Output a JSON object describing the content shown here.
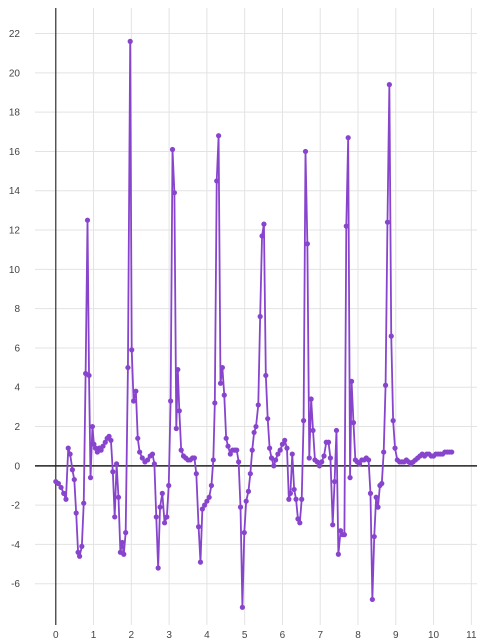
{
  "chart_data": {
    "type": "line",
    "title": "",
    "xlabel": "",
    "ylabel": "",
    "xlim": [
      -0.55,
      11.15
    ],
    "ylim": [
      -8.1,
      23.3
    ],
    "x_ticks": [
      0,
      1,
      2,
      3,
      4,
      5,
      6,
      7,
      8,
      9,
      10,
      11
    ],
    "y_ticks": [
      -6,
      -4,
      -2,
      0,
      2,
      4,
      6,
      8,
      10,
      12,
      14,
      16,
      18,
      20,
      22
    ],
    "grid": true,
    "legend": "none",
    "series": [
      {
        "name": "",
        "color": "#8844cc",
        "marker": "circle",
        "points": [
          [
            0.0,
            -0.8
          ],
          [
            0.07,
            -0.9
          ],
          [
            0.14,
            -1.1
          ],
          [
            0.21,
            -1.4
          ],
          [
            0.27,
            -1.7
          ],
          [
            0.33,
            0.9
          ],
          [
            0.38,
            0.6
          ],
          [
            0.44,
            -0.2
          ],
          [
            0.49,
            -0.7
          ],
          [
            0.54,
            -2.4
          ],
          [
            0.59,
            -4.4
          ],
          [
            0.63,
            -4.6
          ],
          [
            0.69,
            -4.1
          ],
          [
            0.74,
            -1.9
          ],
          [
            0.79,
            4.7
          ],
          [
            0.84,
            12.5
          ],
          [
            0.88,
            4.6
          ],
          [
            0.92,
            -0.6
          ],
          [
            0.97,
            2.0
          ],
          [
            1.01,
            1.1
          ],
          [
            1.05,
            0.9
          ],
          [
            1.1,
            0.7
          ],
          [
            1.15,
            0.9
          ],
          [
            1.2,
            0.8
          ],
          [
            1.25,
            1.0
          ],
          [
            1.31,
            1.2
          ],
          [
            1.36,
            1.4
          ],
          [
            1.41,
            1.5
          ],
          [
            1.46,
            1.3
          ],
          [
            1.51,
            -0.3
          ],
          [
            1.56,
            -2.6
          ],
          [
            1.61,
            0.1
          ],
          [
            1.66,
            -1.6
          ],
          [
            1.71,
            -4.4
          ],
          [
            1.76,
            -3.9
          ],
          [
            1.8,
            -4.5
          ],
          [
            1.85,
            -3.4
          ],
          [
            1.91,
            5.0
          ],
          [
            1.97,
            21.6
          ],
          [
            2.01,
            5.9
          ],
          [
            2.06,
            3.3
          ],
          [
            2.12,
            3.8
          ],
          [
            2.17,
            1.4
          ],
          [
            2.22,
            0.7
          ],
          [
            2.29,
            0.4
          ],
          [
            2.36,
            0.2
          ],
          [
            2.43,
            0.3
          ],
          [
            2.5,
            0.5
          ],
          [
            2.56,
            0.6
          ],
          [
            2.61,
            0.1
          ],
          [
            2.66,
            -2.6
          ],
          [
            2.71,
            -5.2
          ],
          [
            2.76,
            -2.1
          ],
          [
            2.82,
            -1.4
          ],
          [
            2.88,
            -2.9
          ],
          [
            2.94,
            -2.6
          ],
          [
            2.99,
            -1.0
          ],
          [
            3.04,
            3.3
          ],
          [
            3.09,
            16.1
          ],
          [
            3.14,
            13.9
          ],
          [
            3.19,
            1.9
          ],
          [
            3.23,
            4.9
          ],
          [
            3.27,
            2.8
          ],
          [
            3.32,
            0.8
          ],
          [
            3.38,
            0.5
          ],
          [
            3.44,
            0.4
          ],
          [
            3.5,
            0.3
          ],
          [
            3.56,
            0.3
          ],
          [
            3.62,
            0.4
          ],
          [
            3.67,
            0.4
          ],
          [
            3.72,
            -0.4
          ],
          [
            3.78,
            -3.1
          ],
          [
            3.83,
            -4.9
          ],
          [
            3.88,
            -2.2
          ],
          [
            3.94,
            -2.0
          ],
          [
            4.0,
            -1.8
          ],
          [
            4.06,
            -1.6
          ],
          [
            4.12,
            -1.0
          ],
          [
            4.17,
            0.3
          ],
          [
            4.21,
            3.2
          ],
          [
            4.26,
            14.5
          ],
          [
            4.31,
            16.8
          ],
          [
            4.36,
            4.2
          ],
          [
            4.41,
            5.0
          ],
          [
            4.46,
            3.6
          ],
          [
            4.51,
            1.4
          ],
          [
            4.56,
            1.0
          ],
          [
            4.62,
            0.6
          ],
          [
            4.68,
            0.8
          ],
          [
            4.74,
            0.8
          ],
          [
            4.79,
            0.8
          ],
          [
            4.84,
            0.2
          ],
          [
            4.89,
            -2.1
          ],
          [
            4.94,
            -7.2
          ],
          [
            4.99,
            -3.4
          ],
          [
            5.04,
            -1.8
          ],
          [
            5.1,
            -1.3
          ],
          [
            5.15,
            -0.4
          ],
          [
            5.2,
            0.8
          ],
          [
            5.25,
            1.7
          ],
          [
            5.3,
            2.0
          ],
          [
            5.36,
            3.1
          ],
          [
            5.41,
            7.6
          ],
          [
            5.46,
            11.7
          ],
          [
            5.51,
            12.3
          ],
          [
            5.56,
            4.6
          ],
          [
            5.61,
            2.4
          ],
          [
            5.66,
            0.9
          ],
          [
            5.71,
            0.4
          ],
          [
            5.77,
            0.0
          ],
          [
            5.82,
            0.3
          ],
          [
            5.88,
            0.6
          ],
          [
            5.94,
            0.8
          ],
          [
            6.0,
            1.1
          ],
          [
            6.06,
            1.3
          ],
          [
            6.12,
            0.9
          ],
          [
            6.17,
            -1.7
          ],
          [
            6.21,
            -1.4
          ],
          [
            6.26,
            0.6
          ],
          [
            6.31,
            -1.2
          ],
          [
            6.36,
            -1.7
          ],
          [
            6.41,
            -2.7
          ],
          [
            6.46,
            -2.9
          ],
          [
            6.51,
            -1.7
          ],
          [
            6.56,
            2.3
          ],
          [
            6.61,
            16.0
          ],
          [
            6.66,
            11.3
          ],
          [
            6.71,
            0.4
          ],
          [
            6.76,
            3.4
          ],
          [
            6.81,
            1.8
          ],
          [
            6.86,
            0.3
          ],
          [
            6.92,
            0.2
          ],
          [
            6.98,
            0.0
          ],
          [
            7.04,
            0.2
          ],
          [
            7.1,
            0.5
          ],
          [
            7.16,
            1.2
          ],
          [
            7.22,
            1.2
          ],
          [
            7.27,
            0.4
          ],
          [
            7.33,
            -3.0
          ],
          [
            7.38,
            -0.8
          ],
          [
            7.43,
            1.8
          ],
          [
            7.48,
            -4.5
          ],
          [
            7.54,
            -3.3
          ],
          [
            7.59,
            -3.5
          ],
          [
            7.64,
            -3.5
          ],
          [
            7.69,
            12.2
          ],
          [
            7.74,
            16.7
          ],
          [
            7.79,
            -0.6
          ],
          [
            7.83,
            4.3
          ],
          [
            7.88,
            2.2
          ],
          [
            7.93,
            0.3
          ],
          [
            7.98,
            0.2
          ],
          [
            8.04,
            0.1
          ],
          [
            8.1,
            0.3
          ],
          [
            8.16,
            0.3
          ],
          [
            8.22,
            0.4
          ],
          [
            8.28,
            0.3
          ],
          [
            8.33,
            -1.4
          ],
          [
            8.38,
            -6.8
          ],
          [
            8.43,
            -3.6
          ],
          [
            8.48,
            -1.6
          ],
          [
            8.53,
            -2.1
          ],
          [
            8.58,
            -1.0
          ],
          [
            8.63,
            -0.9
          ],
          [
            8.68,
            0.7
          ],
          [
            8.73,
            4.1
          ],
          [
            8.78,
            12.4
          ],
          [
            8.83,
            19.4
          ],
          [
            8.88,
            6.6
          ],
          [
            8.93,
            2.3
          ],
          [
            8.98,
            0.9
          ],
          [
            9.04,
            0.3
          ],
          [
            9.1,
            0.2
          ],
          [
            9.16,
            0.2
          ],
          [
            9.22,
            0.2
          ],
          [
            9.28,
            0.3
          ],
          [
            9.34,
            0.2
          ],
          [
            9.4,
            0.1
          ],
          [
            9.46,
            0.2
          ],
          [
            9.52,
            0.3
          ],
          [
            9.58,
            0.4
          ],
          [
            9.64,
            0.5
          ],
          [
            9.7,
            0.6
          ],
          [
            9.76,
            0.5
          ],
          [
            9.82,
            0.6
          ],
          [
            9.88,
            0.6
          ],
          [
            9.94,
            0.5
          ],
          [
            10.0,
            0.5
          ],
          [
            10.06,
            0.6
          ],
          [
            10.12,
            0.6
          ],
          [
            10.18,
            0.6
          ],
          [
            10.24,
            0.6
          ],
          [
            10.3,
            0.7
          ],
          [
            10.36,
            0.7
          ],
          [
            10.42,
            0.7
          ],
          [
            10.48,
            0.7
          ]
        ]
      }
    ]
  }
}
